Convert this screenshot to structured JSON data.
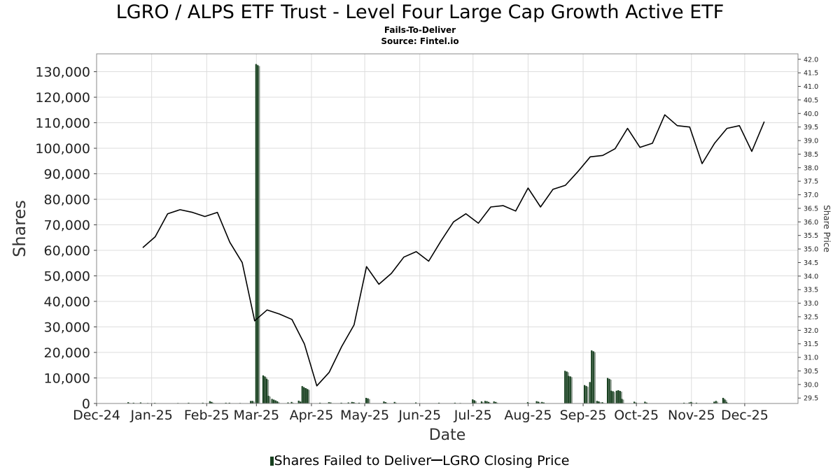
{
  "header": {
    "title": "LGRO / ALPS ETF Trust - Level Four Large Cap Growth Active ETF",
    "subtitle_1": "Fails-To-Deliver",
    "subtitle_2": "Source: Fintel.io"
  },
  "legend": {
    "bar_label": "Shares Failed to Deliver",
    "line_label": "LGRO Closing Price"
  },
  "chart_data": {
    "type": "bar",
    "xlabel": "Date",
    "ylabel": "Shares",
    "y2label": "Share Price",
    "xlim": [
      "2024-12-01",
      "2025-12-31"
    ],
    "ylim": [
      0,
      137000
    ],
    "y2lim": [
      29.3,
      42.2
    ],
    "grid": true,
    "legend_position": "bottom",
    "colors": {
      "bar_dark": "#17401f",
      "bar_light": "#8d9a8f",
      "line": "#000000"
    },
    "x_ticks": [
      {
        "date": "2024-12-01",
        "label": "Dec-24"
      },
      {
        "date": "2025-01-01",
        "label": "Jan-25"
      },
      {
        "date": "2025-02-01",
        "label": "Feb-25"
      },
      {
        "date": "2025-03-01",
        "label": "Mar-25"
      },
      {
        "date": "2025-04-01",
        "label": "Apr-25"
      },
      {
        "date": "2025-05-01",
        "label": "May-25"
      },
      {
        "date": "2025-06-01",
        "label": "Jun-25"
      },
      {
        "date": "2025-07-01",
        "label": "Jul-25"
      },
      {
        "date": "2025-08-01",
        "label": "Aug-25"
      },
      {
        "date": "2025-09-01",
        "label": "Sep-25"
      },
      {
        "date": "2025-10-01",
        "label": "Oct-25"
      },
      {
        "date": "2025-11-01",
        "label": "Nov-25"
      },
      {
        "date": "2025-12-01",
        "label": "Dec-25"
      }
    ],
    "y_ticks": [
      {
        "value": 0,
        "label": "0"
      },
      {
        "value": 10000,
        "label": "10,000"
      },
      {
        "value": 20000,
        "label": "20,000"
      },
      {
        "value": 30000,
        "label": "30,000"
      },
      {
        "value": 40000,
        "label": "40,000"
      },
      {
        "value": 50000,
        "label": "50,000"
      },
      {
        "value": 60000,
        "label": "60,000"
      },
      {
        "value": 70000,
        "label": "70,000"
      },
      {
        "value": 80000,
        "label": "80,000"
      },
      {
        "value": 90000,
        "label": "90,000"
      },
      {
        "value": 100000,
        "label": "100,000"
      },
      {
        "value": 110000,
        "label": "110,000"
      },
      {
        "value": 120000,
        "label": "120,000"
      },
      {
        "value": 130000,
        "label": "130,000"
      }
    ],
    "y2_ticks": [
      {
        "value": 29.5,
        "label": "29.5"
      },
      {
        "value": 30.0,
        "label": "30.0"
      },
      {
        "value": 30.5,
        "label": "30.5"
      },
      {
        "value": 31.0,
        "label": "31.0"
      },
      {
        "value": 31.5,
        "label": "31.5"
      },
      {
        "value": 32.0,
        "label": "32.0"
      },
      {
        "value": 32.5,
        "label": "32.5"
      },
      {
        "value": 33.0,
        "label": "33.0"
      },
      {
        "value": 33.5,
        "label": "33.5"
      },
      {
        "value": 34.0,
        "label": "34.0"
      },
      {
        "value": 34.5,
        "label": "34.5"
      },
      {
        "value": 35.0,
        "label": "35.0"
      },
      {
        "value": 35.5,
        "label": "35.5"
      },
      {
        "value": 36.0,
        "label": "36.0"
      },
      {
        "value": 36.5,
        "label": "36.5"
      },
      {
        "value": 37.0,
        "label": "37.0"
      },
      {
        "value": 37.5,
        "label": "37.5"
      },
      {
        "value": 38.0,
        "label": "38.0"
      },
      {
        "value": 38.5,
        "label": "38.5"
      },
      {
        "value": 39.0,
        "label": "39.0"
      },
      {
        "value": 39.5,
        "label": "39.5"
      },
      {
        "value": 40.0,
        "label": "40.0"
      },
      {
        "value": 40.5,
        "label": "40.5"
      },
      {
        "value": 41.0,
        "label": "41.0"
      },
      {
        "value": 41.5,
        "label": "41.5"
      },
      {
        "value": 42.0,
        "label": "42.0"
      }
    ],
    "series": [
      {
        "name": "Shares Failed to Deliver",
        "kind": "bar",
        "points": [
          {
            "date": "2024-12-19",
            "value": 500
          },
          {
            "date": "2024-12-22",
            "value": 300
          },
          {
            "date": "2024-12-26",
            "value": 400
          },
          {
            "date": "2024-12-30",
            "value": 200
          },
          {
            "date": "2025-01-03",
            "value": 250
          },
          {
            "date": "2025-01-16",
            "value": 200
          },
          {
            "date": "2025-01-22",
            "value": 300
          },
          {
            "date": "2025-01-30",
            "value": 300
          },
          {
            "date": "2025-02-03",
            "value": 900
          },
          {
            "date": "2025-02-04",
            "value": 600
          },
          {
            "date": "2025-02-12",
            "value": 300
          },
          {
            "date": "2025-02-14",
            "value": 300
          },
          {
            "date": "2025-02-20",
            "value": 200
          },
          {
            "date": "2025-02-26",
            "value": 1000
          },
          {
            "date": "2025-02-27",
            "value": 1000
          },
          {
            "date": "2025-03-01",
            "value": 133000
          },
          {
            "date": "2025-03-02",
            "value": 132500
          },
          {
            "date": "2025-03-05",
            "value": 11000
          },
          {
            "date": "2025-03-06",
            "value": 10500
          },
          {
            "date": "2025-03-07",
            "value": 9600
          },
          {
            "date": "2025-03-08",
            "value": 3000
          },
          {
            "date": "2025-03-10",
            "value": 1800
          },
          {
            "date": "2025-03-11",
            "value": 1500
          },
          {
            "date": "2025-03-12",
            "value": 1200
          },
          {
            "date": "2025-03-13",
            "value": 800
          },
          {
            "date": "2025-03-19",
            "value": 400
          },
          {
            "date": "2025-03-21",
            "value": 600
          },
          {
            "date": "2025-03-25",
            "value": 1100
          },
          {
            "date": "2025-03-26",
            "value": 700
          },
          {
            "date": "2025-03-27",
            "value": 6800
          },
          {
            "date": "2025-03-28",
            "value": 6300
          },
          {
            "date": "2025-03-29",
            "value": 6000
          },
          {
            "date": "2025-03-30",
            "value": 5600
          },
          {
            "date": "2025-04-06",
            "value": 300
          },
          {
            "date": "2025-04-11",
            "value": 500
          },
          {
            "date": "2025-04-12",
            "value": 400
          },
          {
            "date": "2025-04-18",
            "value": 300
          },
          {
            "date": "2025-04-22",
            "value": 400
          },
          {
            "date": "2025-04-24",
            "value": 600
          },
          {
            "date": "2025-04-25",
            "value": 500
          },
          {
            "date": "2025-04-28",
            "value": 300
          },
          {
            "date": "2025-05-02",
            "value": 2200
          },
          {
            "date": "2025-05-03",
            "value": 2000
          },
          {
            "date": "2025-05-12",
            "value": 800
          },
          {
            "date": "2025-05-13",
            "value": 500
          },
          {
            "date": "2025-05-18",
            "value": 600
          },
          {
            "date": "2025-05-30",
            "value": 400
          },
          {
            "date": "2025-06-12",
            "value": 300
          },
          {
            "date": "2025-06-21",
            "value": 300
          },
          {
            "date": "2025-06-24",
            "value": 200
          },
          {
            "date": "2025-07-01",
            "value": 1600
          },
          {
            "date": "2025-07-02",
            "value": 1200
          },
          {
            "date": "2025-07-06",
            "value": 800
          },
          {
            "date": "2025-07-08",
            "value": 1000
          },
          {
            "date": "2025-07-09",
            "value": 900
          },
          {
            "date": "2025-07-10",
            "value": 600
          },
          {
            "date": "2025-07-13",
            "value": 800
          },
          {
            "date": "2025-07-14",
            "value": 600
          },
          {
            "date": "2025-08-01",
            "value": 500
          },
          {
            "date": "2025-08-06",
            "value": 900
          },
          {
            "date": "2025-08-07",
            "value": 700
          },
          {
            "date": "2025-08-09",
            "value": 600
          },
          {
            "date": "2025-08-10",
            "value": 400
          },
          {
            "date": "2025-08-22",
            "value": 12800
          },
          {
            "date": "2025-08-23",
            "value": 12500
          },
          {
            "date": "2025-08-24",
            "value": 10800
          },
          {
            "date": "2025-08-25",
            "value": 10600
          },
          {
            "date": "2025-09-02",
            "value": 7200
          },
          {
            "date": "2025-09-03",
            "value": 6800
          },
          {
            "date": "2025-09-05",
            "value": 8400
          },
          {
            "date": "2025-09-06",
            "value": 20800
          },
          {
            "date": "2025-09-07",
            "value": 20400
          },
          {
            "date": "2025-09-09",
            "value": 1000
          },
          {
            "date": "2025-09-10",
            "value": 800
          },
          {
            "date": "2025-09-12",
            "value": 500
          },
          {
            "date": "2025-09-15",
            "value": 10000
          },
          {
            "date": "2025-09-16",
            "value": 9600
          },
          {
            "date": "2025-09-17",
            "value": 5000
          },
          {
            "date": "2025-09-18",
            "value": 4800
          },
          {
            "date": "2025-09-20",
            "value": 5000
          },
          {
            "date": "2025-09-21",
            "value": 5200
          },
          {
            "date": "2025-09-22",
            "value": 4900
          },
          {
            "date": "2025-09-23",
            "value": 1800
          },
          {
            "date": "2025-09-30",
            "value": 700
          },
          {
            "date": "2025-10-01",
            "value": 300
          },
          {
            "date": "2025-10-06",
            "value": 700
          },
          {
            "date": "2025-10-07",
            "value": 300
          },
          {
            "date": "2025-10-28",
            "value": 300
          },
          {
            "date": "2025-10-31",
            "value": 400
          },
          {
            "date": "2025-11-01",
            "value": 600
          },
          {
            "date": "2025-11-04",
            "value": 300
          },
          {
            "date": "2025-11-14",
            "value": 700
          },
          {
            "date": "2025-11-15",
            "value": 1000
          },
          {
            "date": "2025-11-19",
            "value": 2200
          },
          {
            "date": "2025-11-20",
            "value": 1500
          },
          {
            "date": "2025-11-21",
            "value": 500
          }
        ]
      },
      {
        "name": "LGRO Closing Price",
        "kind": "line",
        "axis": "right",
        "points": [
          {
            "date": "2024-12-27",
            "value": 35.05
          },
          {
            "date": "2025-01-03",
            "value": 35.45
          },
          {
            "date": "2025-01-10",
            "value": 36.3
          },
          {
            "date": "2025-01-17",
            "value": 36.45
          },
          {
            "date": "2025-01-24",
            "value": 36.35
          },
          {
            "date": "2025-01-31",
            "value": 36.2
          },
          {
            "date": "2025-02-07",
            "value": 36.35
          },
          {
            "date": "2025-02-14",
            "value": 35.25
          },
          {
            "date": "2025-02-21",
            "value": 34.5
          },
          {
            "date": "2025-02-28",
            "value": 32.35
          },
          {
            "date": "2025-03-07",
            "value": 32.75
          },
          {
            "date": "2025-03-14",
            "value": 32.6
          },
          {
            "date": "2025-03-21",
            "value": 32.4
          },
          {
            "date": "2025-03-28",
            "value": 31.5
          },
          {
            "date": "2025-04-04",
            "value": 29.95
          },
          {
            "date": "2025-04-11",
            "value": 30.45
          },
          {
            "date": "2025-04-18",
            "value": 31.4
          },
          {
            "date": "2025-04-25",
            "value": 32.2
          },
          {
            "date": "2025-05-02",
            "value": 34.35
          },
          {
            "date": "2025-05-09",
            "value": 33.7
          },
          {
            "date": "2025-05-16",
            "value": 34.1
          },
          {
            "date": "2025-05-23",
            "value": 34.7
          },
          {
            "date": "2025-05-30",
            "value": 34.9
          },
          {
            "date": "2025-06-06",
            "value": 34.55
          },
          {
            "date": "2025-06-13",
            "value": 35.3
          },
          {
            "date": "2025-06-20",
            "value": 36.0
          },
          {
            "date": "2025-06-27",
            "value": 36.3
          },
          {
            "date": "2025-07-04",
            "value": 35.95
          },
          {
            "date": "2025-07-11",
            "value": 36.55
          },
          {
            "date": "2025-07-18",
            "value": 36.6
          },
          {
            "date": "2025-07-25",
            "value": 36.4
          },
          {
            "date": "2025-08-01",
            "value": 37.25
          },
          {
            "date": "2025-08-08",
            "value": 36.55
          },
          {
            "date": "2025-08-15",
            "value": 37.2
          },
          {
            "date": "2025-08-22",
            "value": 37.35
          },
          {
            "date": "2025-08-29",
            "value": 37.85
          },
          {
            "date": "2025-09-05",
            "value": 38.4
          },
          {
            "date": "2025-09-12",
            "value": 38.45
          },
          {
            "date": "2025-09-19",
            "value": 38.7
          },
          {
            "date": "2025-09-26",
            "value": 39.45
          },
          {
            "date": "2025-10-03",
            "value": 38.75
          },
          {
            "date": "2025-10-10",
            "value": 38.9
          },
          {
            "date": "2025-10-17",
            "value": 39.95
          },
          {
            "date": "2025-10-24",
            "value": 39.55
          },
          {
            "date": "2025-10-31",
            "value": 39.5
          },
          {
            "date": "2025-11-07",
            "value": 38.15
          },
          {
            "date": "2025-11-14",
            "value": 38.9
          },
          {
            "date": "2025-11-21",
            "value": 39.45
          },
          {
            "date": "2025-11-28",
            "value": 39.55
          },
          {
            "date": "2025-12-05",
            "value": 38.6
          },
          {
            "date": "2025-12-12",
            "value": 39.7
          }
        ]
      }
    ]
  }
}
